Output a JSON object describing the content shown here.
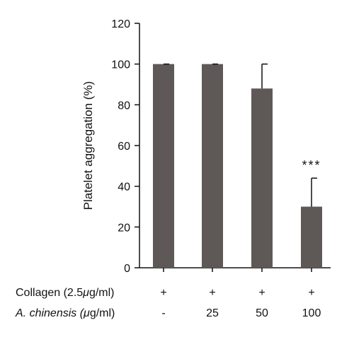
{
  "chart_data": {
    "type": "bar",
    "title": "",
    "xlabel": "",
    "ylabel": "Platelet aggregation (%)",
    "ylim": [
      0,
      120
    ],
    "yticks": [
      0,
      20,
      40,
      60,
      80,
      100,
      120
    ],
    "categories": [
      "-",
      "25",
      "50",
      "100"
    ],
    "values": [
      100,
      100,
      88,
      30
    ],
    "errors": [
      0,
      0,
      12,
      14
    ],
    "significance": [
      "",
      "",
      "",
      "***"
    ],
    "bar_color": "#5e5956",
    "treatment_rows": [
      {
        "label_plain": "Collagen (2.5",
        "label_mu": "μ",
        "label_rest": "g/ml)",
        "italic_part": "",
        "values": [
          "+",
          "+",
          "+",
          "+"
        ]
      },
      {
        "label_plain": "",
        "label_mu": "μ",
        "label_rest": "g/ml)",
        "italic_part": "A. chinensis",
        "values": [
          "-",
          "25",
          "50",
          "100"
        ]
      }
    ],
    "grid": false,
    "legend": "none"
  }
}
